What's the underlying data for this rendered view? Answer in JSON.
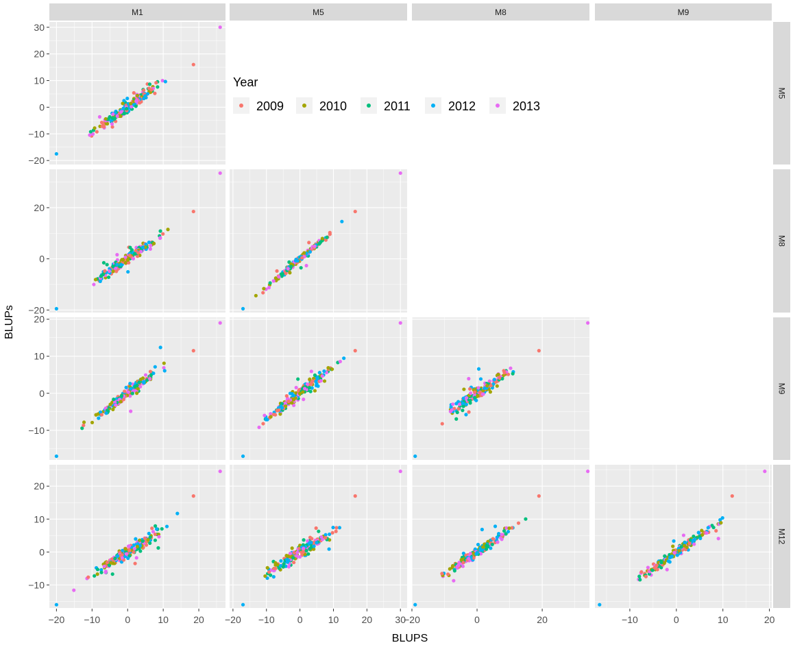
{
  "chart_data": {
    "type": "scatter",
    "facet": "pairwise matrix (lower triangle)",
    "xlabel": "BLUPS",
    "ylabel": "BLUPs",
    "column_strips": [
      "M1",
      "M5",
      "M8",
      "M9"
    ],
    "row_strips": [
      "M5",
      "M8",
      "M9",
      "M12"
    ],
    "legend": {
      "title": "Year",
      "placement": "inside top-right region (empty upper triangle)",
      "entries": [
        {
          "name": "2009",
          "color": "#F8766D"
        },
        {
          "name": "2010",
          "color": "#A3A500"
        },
        {
          "name": "2011",
          "color": "#00BF7D"
        },
        {
          "name": "2012",
          "color": "#00B0F6"
        },
        {
          "name": "2013",
          "color": "#E76BF3"
        }
      ]
    },
    "x_axes": {
      "M1": {
        "ticks": [
          "−20",
          "−10",
          "0",
          "10",
          "20"
        ],
        "range": [
          -22,
          27.5
        ]
      },
      "M5": {
        "ticks": [
          "−20",
          "−10",
          "0",
          "10",
          "20",
          "30"
        ],
        "range": [
          -21,
          32
        ]
      },
      "M8": {
        "ticks": [
          "−20",
          "0",
          "20"
        ],
        "range": [
          -20,
          34.5
        ]
      },
      "M9": {
        "ticks": [
          "−10",
          "0",
          "10",
          "20"
        ],
        "range": [
          -17.5,
          20.5
        ]
      }
    },
    "y_axes": {
      "M5": {
        "ticks": [
          "30",
          "20",
          "10",
          "0",
          "−10",
          "−20"
        ],
        "range": [
          -21.5,
          32
        ]
      },
      "M8": {
        "ticks": [
          "20",
          "0",
          "−20"
        ],
        "range": [
          -21,
          35
        ]
      },
      "M9": {
        "ticks": [
          "20",
          "10",
          "0",
          "−10"
        ],
        "range": [
          -18,
          20.5
        ]
      },
      "M12": {
        "ticks": [
          "20",
          "10",
          "0",
          "−10"
        ],
        "range": [
          -17,
          26.5
        ]
      }
    },
    "grid": true,
    "background": "#EBEBEB",
    "panels": [
      {
        "x": "M1",
        "y": "M5",
        "slope": 1.0,
        "spread": 2.6,
        "outliers": [
          [
            26,
            30,
            "2013"
          ],
          [
            -20,
            -17.5,
            "2012"
          ],
          [
            18.5,
            16,
            "2009"
          ]
        ]
      },
      {
        "x": "M1",
        "y": "M8",
        "slope": 0.95,
        "spread": 2.3,
        "outliers": [
          [
            26,
            33.5,
            "2013"
          ],
          [
            -20,
            -19.5,
            "2012"
          ],
          [
            18.5,
            18.5,
            "2009"
          ]
        ]
      },
      {
        "x": "M1",
        "y": "M9",
        "slope": 0.75,
        "spread": 1.8,
        "outliers": [
          [
            26,
            19,
            "2013"
          ],
          [
            -20,
            -17,
            "2012"
          ],
          [
            18.5,
            11.5,
            "2009"
          ]
        ]
      },
      {
        "x": "M1",
        "y": "M12",
        "slope": 0.7,
        "spread": 2.2,
        "outliers": [
          [
            26,
            24.5,
            "2013"
          ],
          [
            -20,
            -16,
            "2012"
          ],
          [
            18.5,
            17,
            "2009"
          ]
        ]
      },
      {
        "x": "M5",
        "y": "M8",
        "slope": 1.1,
        "spread": 1.3,
        "outliers": [
          [
            30,
            33.5,
            "2013"
          ],
          [
            -17,
            -19.5,
            "2012"
          ],
          [
            16.5,
            18.5,
            "2009"
          ]
        ]
      },
      {
        "x": "M5",
        "y": "M9",
        "slope": 0.7,
        "spread": 2.2,
        "outliers": [
          [
            30,
            19,
            "2013"
          ],
          [
            -17,
            -17,
            "2012"
          ],
          [
            16.5,
            11.5,
            "2009"
          ]
        ]
      },
      {
        "x": "M5",
        "y": "M12",
        "slope": 0.65,
        "spread": 2.4,
        "outliers": [
          [
            30,
            24.5,
            "2013"
          ],
          [
            -17,
            -16,
            "2012"
          ],
          [
            16.5,
            17,
            "2009"
          ]
        ]
      },
      {
        "x": "M8",
        "y": "M9",
        "slope": 0.6,
        "spread": 2.0,
        "outliers": [
          [
            34,
            19,
            "2013"
          ],
          [
            -19,
            -17,
            "2012"
          ],
          [
            19,
            11.5,
            "2009"
          ]
        ]
      },
      {
        "x": "M8",
        "y": "M12",
        "slope": 0.65,
        "spread": 1.8,
        "outliers": [
          [
            34,
            24.5,
            "2013"
          ],
          [
            -19,
            -16,
            "2012"
          ],
          [
            19,
            17,
            "2009"
          ]
        ]
      },
      {
        "x": "M9",
        "y": "M12",
        "slope": 1.0,
        "spread": 1.6,
        "outliers": [
          [
            19,
            24.5,
            "2013"
          ],
          [
            -16.5,
            -16,
            "2012"
          ],
          [
            12,
            17,
            "2009"
          ]
        ]
      }
    ]
  }
}
